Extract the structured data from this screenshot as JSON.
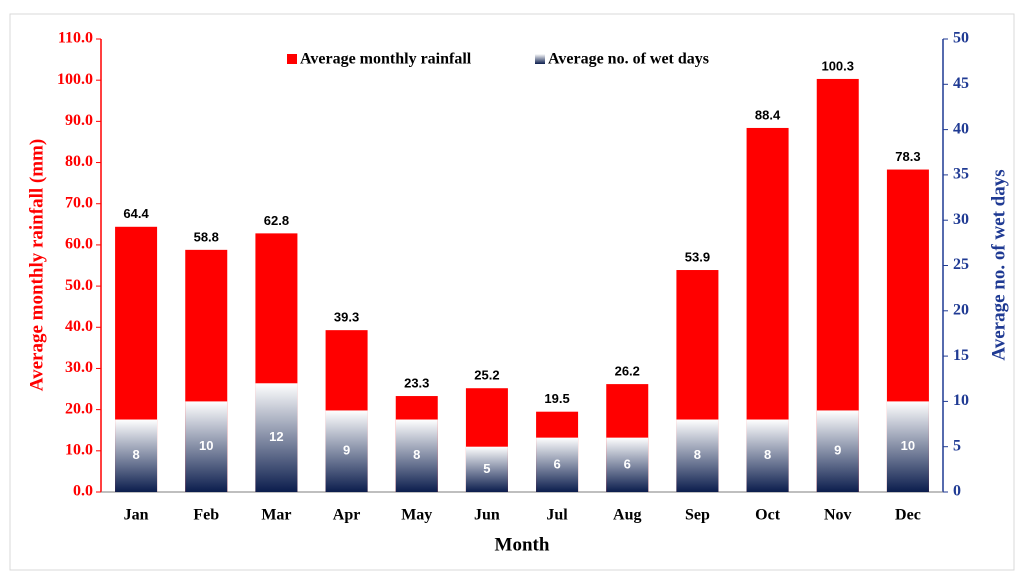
{
  "chart_data": {
    "type": "bar",
    "categories": [
      "Jan",
      "Feb",
      "Mar",
      "Apr",
      "May",
      "Jun",
      "Jul",
      "Aug",
      "Sep",
      "Oct",
      "Nov",
      "Dec"
    ],
    "series": [
      {
        "name": "Average monthly rainfall",
        "color": "#ff0000",
        "values": [
          64.4,
          58.8,
          62.8,
          39.3,
          23.3,
          25.2,
          19.5,
          26.2,
          53.9,
          88.4,
          100.3,
          78.3
        ]
      },
      {
        "name": "Average no. of wet days",
        "color": "#0b1d4d",
        "axis": "y2",
        "values": [
          8,
          10,
          12,
          9,
          8,
          5,
          6,
          6,
          8,
          8,
          9,
          10
        ]
      }
    ],
    "ylabel": "Average monthly rainfall (mm)",
    "y2label": "Average no. of wet days",
    "xlabel": "Month",
    "ylim": [
      0,
      110
    ],
    "yticks": [
      {
        "value": 0,
        "label": "0.0"
      },
      {
        "value": 10,
        "label": "10.0"
      },
      {
        "value": 20,
        "label": "20.0"
      },
      {
        "value": 30,
        "label": "30.0"
      },
      {
        "value": 40,
        "label": "40.0"
      },
      {
        "value": 50,
        "label": "50.0"
      },
      {
        "value": 60,
        "label": "60.0"
      },
      {
        "value": 70,
        "label": "70.0"
      },
      {
        "value": 80,
        "label": "80.0"
      },
      {
        "value": 90,
        "label": "90.0"
      },
      {
        "value": 100,
        "label": "100.0"
      },
      {
        "value": 110,
        "label": "110.0"
      }
    ],
    "y2lim": [
      0,
      50
    ],
    "y2ticks": [
      0,
      5,
      10,
      15,
      20,
      25,
      30,
      35,
      40,
      45,
      50
    ],
    "ycolor": "#ff0000",
    "y2color": "#1f3a93",
    "legend": "top"
  }
}
